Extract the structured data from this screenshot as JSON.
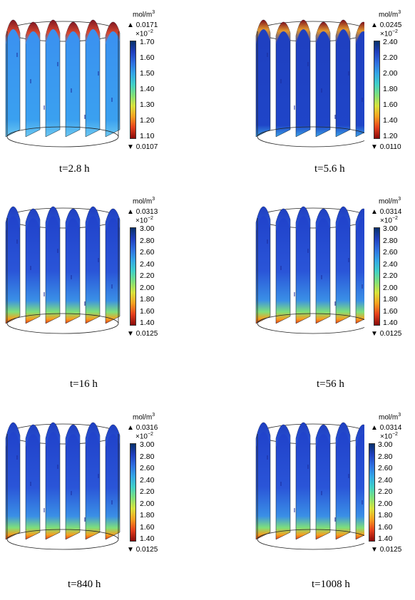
{
  "unit_label": "mol/m",
  "unit_exp": "3",
  "scale_label": "×10",
  "scale_exp": "−2",
  "panels": [
    {
      "time": "t=2.8 h",
      "max": "0.0171",
      "min": "0.0107",
      "ticks": [
        "1.70",
        "1.60",
        "1.50",
        "1.40",
        "1.30",
        "1.20",
        "1.10"
      ],
      "state": "early"
    },
    {
      "time": "t=5.6 h",
      "max": "0.0245",
      "min": "0.0110",
      "ticks": [
        "2.40",
        "2.20",
        "2.00",
        "1.80",
        "1.60",
        "1.40",
        "1.20"
      ],
      "state": "mid"
    },
    {
      "time": "t=16 h",
      "max": "0.0313",
      "min": "0.0125",
      "ticks": [
        "3.00",
        "2.80",
        "2.60",
        "2.40",
        "2.20",
        "2.00",
        "1.80",
        "1.60",
        "1.40"
      ],
      "state": "late"
    },
    {
      "time": "t=56 h",
      "max": "0.0314",
      "min": "0.0125",
      "ticks": [
        "3.00",
        "2.80",
        "2.60",
        "2.40",
        "2.20",
        "2.00",
        "1.80",
        "1.60",
        "1.40"
      ],
      "state": "late"
    },
    {
      "time": "t=840 h",
      "max": "0.0316",
      "min": "0.0125",
      "ticks": [
        "3.00",
        "2.80",
        "2.60",
        "2.40",
        "2.20",
        "2.00",
        "1.80",
        "1.60",
        "1.40"
      ],
      "state": "late"
    },
    {
      "time": "t=1008 h",
      "max": "0.0314",
      "min": "0.0125",
      "ticks": [
        "3.00",
        "2.80",
        "2.60",
        "2.40",
        "2.20",
        "2.00",
        "1.80",
        "1.60",
        "1.40"
      ],
      "state": "late"
    }
  ],
  "colormap": [
    "#08306b",
    "#1f3fbf",
    "#2f6fe0",
    "#33a6e6",
    "#3fd0c8",
    "#7fe07a",
    "#d8e33a",
    "#f6a01f",
    "#e6401c",
    "#8a0a0a"
  ]
}
